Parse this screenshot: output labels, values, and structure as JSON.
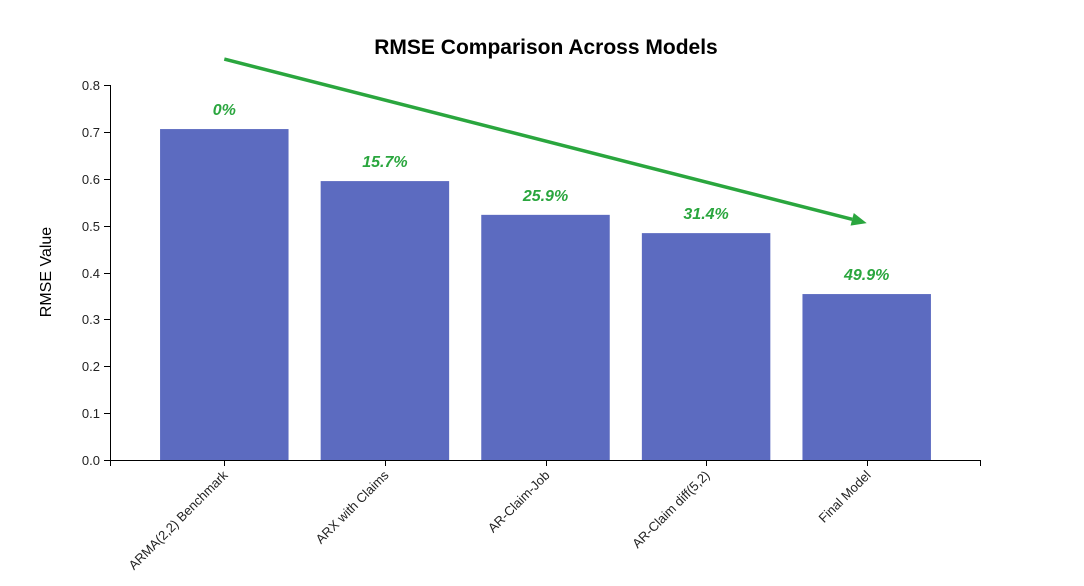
{
  "chart_data": {
    "type": "bar",
    "title": "RMSE Comparison Across Models",
    "xlabel": "",
    "ylabel": "RMSE Value",
    "ylim": [
      0,
      0.8
    ],
    "yticks": [
      "0.0",
      "0.1",
      "0.2",
      "0.3",
      "0.4",
      "0.5",
      "0.6",
      "0.7",
      "0.8"
    ],
    "categories": [
      "ARMA(2,2) Benchmark",
      "ARX with Claims",
      "AR-Claim-Job",
      "AR-Claim diff(5,2)",
      "Final Model"
    ],
    "values": [
      0.706,
      0.595,
      0.523,
      0.484,
      0.354
    ],
    "improvement_labels": [
      "0%",
      "15.7%",
      "25.9%",
      "31.4%",
      "49.9%"
    ],
    "trend_arrow": {
      "from_category": 0,
      "to_category": 4
    },
    "grid": false,
    "colors": {
      "bar": "#5c6bc0",
      "improvement": "#2aa63e",
      "arrow": "#2aa63e"
    }
  }
}
